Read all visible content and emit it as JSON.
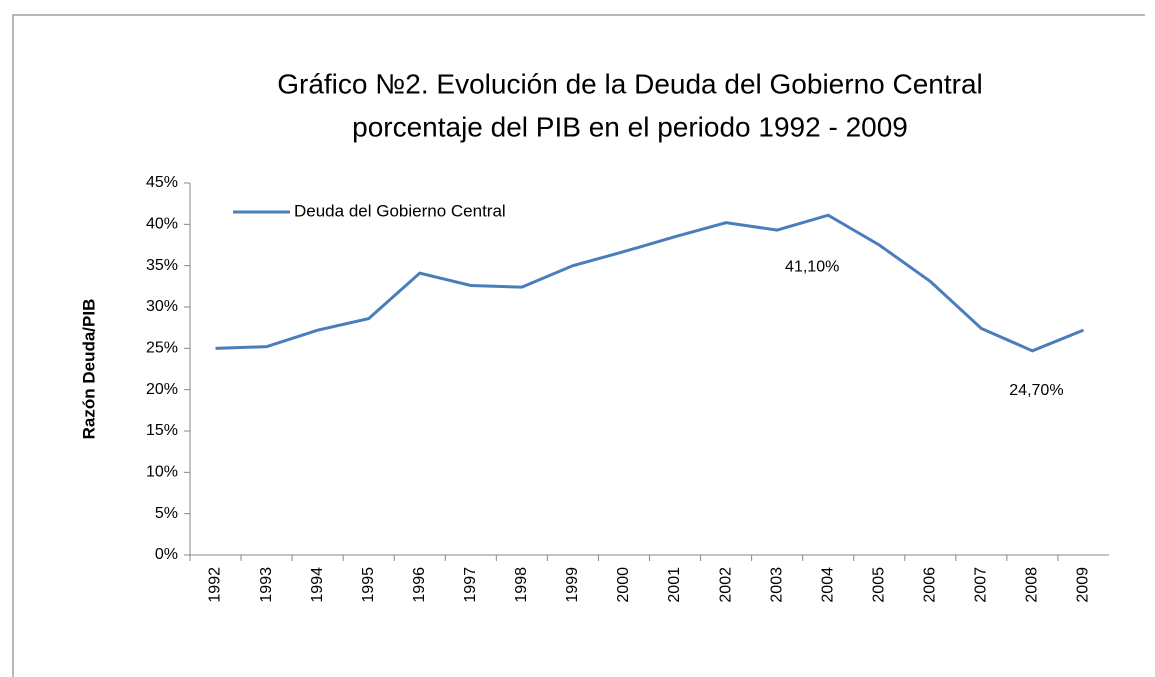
{
  "chart_data": {
    "type": "line",
    "title": [
      "Gráfico №2. Evolución de la Deuda del Gobierno Central",
      "porcentaje del PIB en el periodo 1992 - 2009"
    ],
    "y_label": "Razón Deuda/PIB",
    "categories": [
      "1992",
      "1993",
      "1994",
      "1995",
      "1996",
      "1997",
      "1998",
      "1999",
      "2000",
      "2001",
      "2002",
      "2003",
      "2004",
      "2005",
      "2006",
      "2007",
      "2008",
      "2009"
    ],
    "series": [
      {
        "name": "Deuda del Gobierno Central",
        "color": "#4a7ebb",
        "values": [
          25.0,
          25.2,
          27.2,
          28.6,
          34.1,
          32.6,
          32.4,
          35.0,
          36.7,
          38.5,
          40.2,
          39.3,
          41.1,
          37.5,
          33.1,
          27.4,
          24.7,
          27.2
        ],
        "value_labels": [
          null,
          null,
          null,
          null,
          null,
          null,
          null,
          null,
          null,
          null,
          null,
          null,
          "41,10%",
          null,
          null,
          null,
          "24,70%",
          null
        ]
      }
    ],
    "ylim": [
      0,
      45
    ],
    "yticks": [
      {
        "value": 0,
        "label": "0%"
      },
      {
        "value": 5,
        "label": "5%"
      },
      {
        "value": 10,
        "label": "10%"
      },
      {
        "value": 15,
        "label": "15%"
      },
      {
        "value": 20,
        "label": "20%"
      },
      {
        "value": 25,
        "label": "25%"
      },
      {
        "value": 30,
        "label": "30%"
      },
      {
        "value": 35,
        "label": "35%"
      },
      {
        "value": 40,
        "label": "40%"
      },
      {
        "value": 45,
        "label": "45%"
      }
    ],
    "grid": false,
    "legend": "upper left"
  }
}
